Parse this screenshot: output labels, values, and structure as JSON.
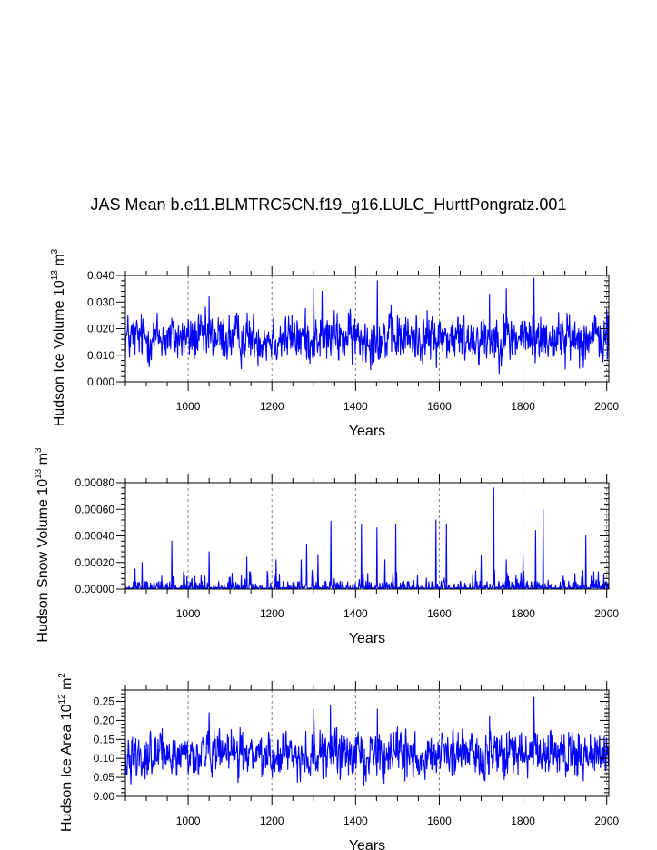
{
  "title": "JAS Mean b.e11.BLMTRC5CN.f19_g16.LULC_HurttPongratz.001",
  "line_color": "#0000ff",
  "frame_color": "#000000",
  "grid_color": "#808080",
  "chart_data": [
    {
      "type": "line",
      "id": "ice-volume",
      "xlabel": "Years",
      "ylabel_main": "Hudson Ice Volume 10",
      "ylabel_exp": "13",
      "ylabel_unit": "m",
      "ylabel_unit_exp": "3",
      "xlim": [
        850,
        2005
      ],
      "ylim": [
        0.0,
        0.04
      ],
      "xticks": [
        1000,
        1200,
        1400,
        1600,
        1800,
        2000
      ],
      "xtick_labels": [
        "1000",
        "1200",
        "1400",
        "1600",
        "1800",
        "2000"
      ],
      "yticks": [
        0.0,
        0.01,
        0.02,
        0.03,
        0.04
      ],
      "ytick_labels": [
        "0.000",
        "0.010",
        "0.020",
        "0.030",
        "0.040"
      ],
      "grid": "vertical dashed at x ticks",
      "series": [
        {
          "name": "Hudson Ice Volume",
          "x_start": 850,
          "x_end": 2005,
          "mean": 0.0165,
          "spread": 0.0055,
          "min": 0.003,
          "peaks": [
            [
              1050,
              0.032
            ],
            [
              1300,
              0.035
            ],
            [
              1320,
              0.034
            ],
            [
              1452,
              0.038
            ],
            [
              1720,
              0.033
            ],
            [
              1760,
              0.035
            ],
            [
              1826,
              0.039
            ]
          ]
        }
      ]
    },
    {
      "type": "line",
      "id": "snow-volume",
      "xlabel": "Years",
      "ylabel_main": "Hudson Snow Volume 10",
      "ylabel_exp": "13",
      "ylabel_unit": "m",
      "ylabel_unit_exp": "3",
      "xlim": [
        850,
        2005
      ],
      "ylim": [
        0.0,
        0.0008
      ],
      "xticks": [
        1000,
        1200,
        1400,
        1600,
        1800,
        2000
      ],
      "xtick_labels": [
        "1000",
        "1200",
        "1400",
        "1600",
        "1800",
        "2000"
      ],
      "yticks": [
        0.0,
        0.0002,
        0.0004,
        0.0006,
        0.0008
      ],
      "ytick_labels": [
        "0.00000",
        "0.00020",
        "0.00040",
        "0.00060",
        "0.00080"
      ],
      "grid": "vertical dashed at x ticks",
      "series": [
        {
          "name": "Hudson Snow Volume",
          "x_start": 850,
          "x_end": 2005,
          "baseline": 2e-05,
          "spikes": [
            [
              873,
              0.00015
            ],
            [
              890,
              0.0002
            ],
            [
              961,
              0.00036
            ],
            [
              1050,
              0.00028
            ],
            [
              1140,
              0.00024
            ],
            [
              1210,
              0.00022
            ],
            [
              1270,
              0.00022
            ],
            [
              1283,
              0.00034
            ],
            [
              1310,
              0.00026
            ],
            [
              1341,
              0.00051
            ],
            [
              1414,
              0.00049
            ],
            [
              1451,
              0.00046
            ],
            [
              1470,
              0.00022
            ],
            [
              1496,
              0.00049
            ],
            [
              1592,
              0.00052
            ],
            [
              1617,
              0.00049
            ],
            [
              1700,
              0.00025
            ],
            [
              1730,
              0.00076
            ],
            [
              1760,
              0.00022
            ],
            [
              1800,
              0.00026
            ],
            [
              1830,
              0.00044
            ],
            [
              1848,
              0.0006
            ],
            [
              1950,
              0.0004
            ]
          ]
        }
      ]
    },
    {
      "type": "line",
      "id": "ice-area",
      "xlabel": "Years",
      "ylabel_main": "Hudson Ice Area 10",
      "ylabel_exp": "12",
      "ylabel_unit": "m",
      "ylabel_unit_exp": "2",
      "xlim": [
        850,
        2005
      ],
      "ylim": [
        0.0,
        0.28
      ],
      "xticks": [
        1000,
        1200,
        1400,
        1600,
        1800,
        2000
      ],
      "xtick_labels": [
        "1000",
        "1200",
        "1400",
        "1600",
        "1800",
        "2000"
      ],
      "yticks": [
        0.0,
        0.05,
        0.1,
        0.15,
        0.2,
        0.25
      ],
      "ytick_labels": [
        "0.00",
        "0.05",
        "0.10",
        "0.15",
        "0.20",
        "0.25"
      ],
      "grid": "vertical dashed at x ticks",
      "series": [
        {
          "name": "Hudson Ice Area",
          "x_start": 850,
          "x_end": 2005,
          "mean": 0.11,
          "spread": 0.035,
          "min": 0.02,
          "peaks": [
            [
              1050,
              0.22
            ],
            [
              1300,
              0.23
            ],
            [
              1340,
              0.24
            ],
            [
              1452,
              0.23
            ],
            [
              1720,
              0.21
            ],
            [
              1826,
              0.26
            ]
          ]
        }
      ]
    }
  ]
}
